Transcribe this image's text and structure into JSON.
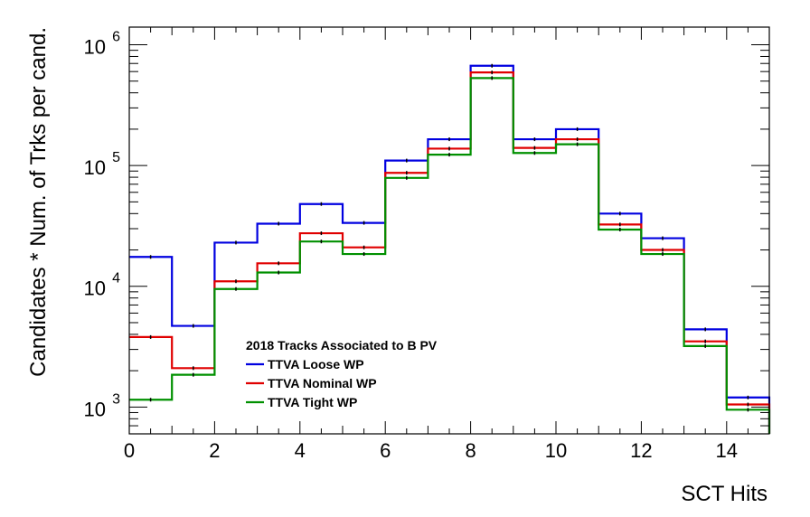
{
  "chart_data": {
    "type": "line",
    "style": "step-histogram",
    "xlabel": "SCT Hits",
    "ylabel": "Candidates * Num. of Trks per cand.",
    "xlim": [
      0,
      15
    ],
    "ylim": [
      600,
      1400000
    ],
    "yscale": "log",
    "grid": false,
    "legend_placement": "lower-center",
    "legend_title": "2018 Tracks Associated to B PV",
    "bin_edges": [
      0,
      1,
      2,
      3,
      4,
      5,
      6,
      7,
      8,
      9,
      10,
      11,
      12,
      13,
      14,
      15
    ],
    "x_ticks": [
      0,
      2,
      4,
      6,
      8,
      10,
      12,
      14
    ],
    "y_ticks": [
      {
        "value": 1000,
        "base": "10",
        "exp": "3"
      },
      {
        "value": 10000,
        "base": "10",
        "exp": "4"
      },
      {
        "value": 100000,
        "base": "10",
        "exp": "5"
      },
      {
        "value": 1000000,
        "base": "10",
        "exp": "6"
      }
    ],
    "series": [
      {
        "name": "TTVA Loose WP",
        "color": "#0000e0",
        "values": [
          17500,
          4700,
          23000,
          33000,
          48000,
          33500,
          110000,
          165000,
          670000,
          165000,
          200000,
          40000,
          25000,
          4400,
          1200
        ]
      },
      {
        "name": "TTVA Nominal WP",
        "color": "#e00000",
        "values": [
          3800,
          2100,
          11000,
          15500,
          27500,
          21000,
          87000,
          138000,
          590000,
          140000,
          165000,
          32500,
          20000,
          3500,
          1050
        ]
      },
      {
        "name": "TTVA Tight WP",
        "color": "#009000",
        "values": [
          1150,
          1850,
          9500,
          13000,
          23500,
          18500,
          79000,
          123000,
          530000,
          127000,
          150000,
          29500,
          18500,
          3200,
          950
        ]
      }
    ]
  }
}
